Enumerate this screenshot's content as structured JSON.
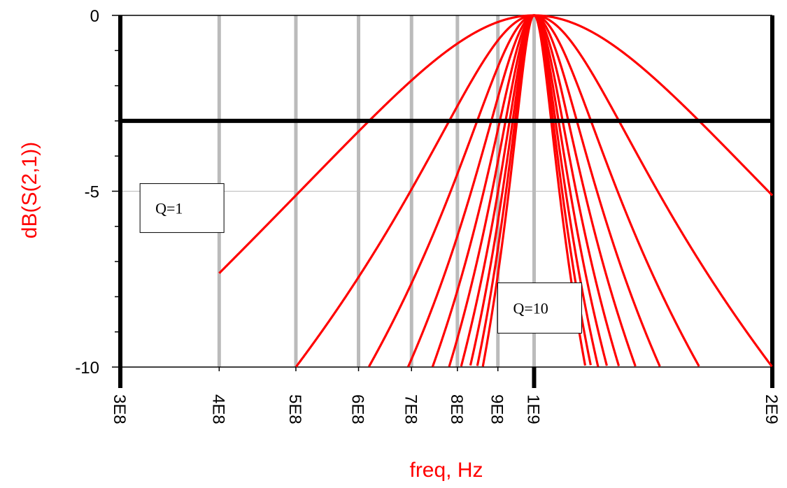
{
  "chart_data": {
    "type": "line",
    "xlabel": "freq, Hz",
    "ylabel": "dB(S(2,1))",
    "x_scale": "log",
    "xlim": [
      300000000,
      2000000000
    ],
    "ylim": [
      -10,
      0
    ],
    "y_ticks": [
      0,
      -5,
      -10
    ],
    "x_major_ticks": [
      "3E8",
      "4E8",
      "5E8",
      "6E8",
      "7E8",
      "8E8",
      "9E8",
      "1E9",
      "2E9"
    ],
    "x_tick_values": [
      300000000,
      400000000,
      500000000,
      600000000,
      700000000,
      800000000,
      900000000,
      1000000000,
      2000000000
    ],
    "reference_line_db": -3,
    "center_frequency": 1000000000,
    "q_values": [
      1,
      2,
      3,
      4,
      5,
      6,
      7,
      8,
      9,
      10
    ],
    "series_x_start": 400000000,
    "annotations": [
      {
        "text": "Q=1",
        "near_x": 440000000,
        "near_y": -5.3
      },
      {
        "text": "Q=10",
        "near_x": 1000000000,
        "near_y": -8.6
      }
    ],
    "line_color": "#ff0000",
    "axis_color": "#000000",
    "gridline_color": "#bbbbbb",
    "grid": true
  }
}
